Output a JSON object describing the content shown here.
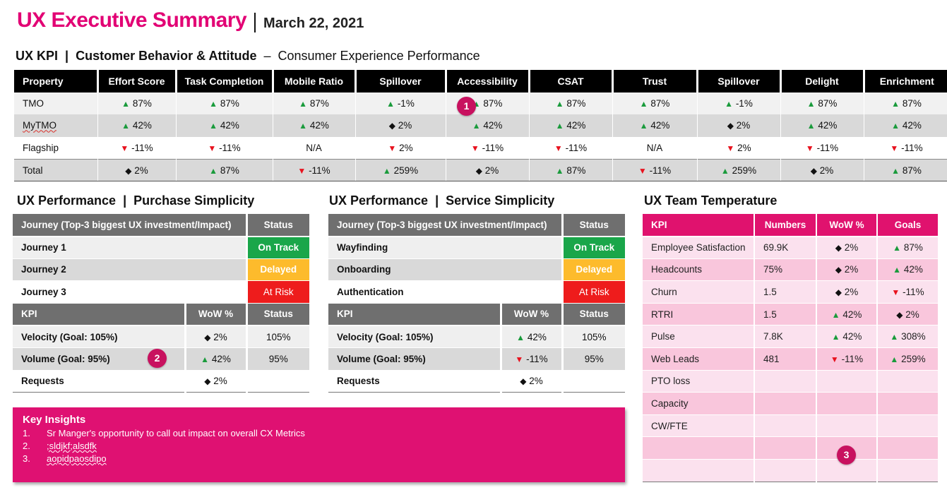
{
  "header": {
    "title": "UX Executive Summary",
    "date": "March 22, 2021"
  },
  "kpi_section": {
    "label": "UX KPI",
    "subtitle": "Customer Behavior & Attitude",
    "description": "Consumer Experience Performance",
    "columns": [
      "Property",
      "Effort Score",
      "Task Completion",
      "Mobile Ratio",
      "Spillover",
      "Accessibility",
      "CSAT",
      "Trust",
      "Spillover",
      "Delight",
      "Enrichment"
    ],
    "rows": [
      {
        "property": "TMO",
        "cells": [
          [
            "up",
            "87%"
          ],
          [
            "up",
            "87%"
          ],
          [
            "up",
            "87%"
          ],
          [
            "up",
            "-1%"
          ],
          [
            "up",
            "87%"
          ],
          [
            "up",
            "87%"
          ],
          [
            "up",
            "87%"
          ],
          [
            "up",
            "-1%"
          ],
          [
            "up",
            "87%"
          ],
          [
            "up",
            "87%"
          ]
        ]
      },
      {
        "property": "MyTMO",
        "cells": [
          [
            "up",
            "42%"
          ],
          [
            "up",
            "42%"
          ],
          [
            "up",
            "42%"
          ],
          [
            "flat",
            "2%"
          ],
          [
            "up",
            "42%"
          ],
          [
            "up",
            "42%"
          ],
          [
            "up",
            "42%"
          ],
          [
            "flat",
            "2%"
          ],
          [
            "up",
            "42%"
          ],
          [
            "up",
            "42%"
          ]
        ]
      },
      {
        "property": "Flagship",
        "cells": [
          [
            "down",
            "-11%"
          ],
          [
            "down",
            "-11%"
          ],
          [
            "none",
            "N/A"
          ],
          [
            "down",
            "2%"
          ],
          [
            "down",
            "-11%"
          ],
          [
            "down",
            "-11%"
          ],
          [
            "none",
            "N/A"
          ],
          [
            "down",
            "2%"
          ],
          [
            "down",
            "-11%"
          ],
          [
            "down",
            "-11%"
          ]
        ]
      },
      {
        "property": "Total",
        "cells": [
          [
            "flat",
            "2%"
          ],
          [
            "up",
            "87%"
          ],
          [
            "down",
            "-11%"
          ],
          [
            "up",
            "259%"
          ],
          [
            "flat",
            "2%"
          ],
          [
            "up",
            "87%"
          ],
          [
            "down",
            "-11%"
          ],
          [
            "up",
            "259%"
          ],
          [
            "flat",
            "2%"
          ],
          [
            "up",
            "87%"
          ]
        ]
      }
    ]
  },
  "purchase": {
    "label": "UX Performance",
    "subtitle": "Purchase Simplicity",
    "journey_header": "Journey (Top-3 biggest UX investment/Impact)",
    "status_header": "Status",
    "journeys": [
      {
        "name": "Journey 1",
        "status": "On Track",
        "status_type": "green"
      },
      {
        "name": "Journey 2",
        "status": "Delayed",
        "status_type": "amber"
      },
      {
        "name": "Journey 3",
        "status": "At Risk",
        "status_type": "red"
      }
    ],
    "kpi_header": "KPI",
    "wow_header": "WoW %",
    "kpi_status_header": "Status",
    "kpis": [
      {
        "name": "Velocity (Goal: 105%)",
        "trend": "flat",
        "wow": "2%",
        "status": "105%"
      },
      {
        "name": "Volume (Goal: 95%)",
        "trend": "up",
        "wow": "42%",
        "status": "95%"
      },
      {
        "name": "Requests",
        "trend": "flat",
        "wow": "2%",
        "status": ""
      }
    ]
  },
  "service": {
    "label": "UX Performance",
    "subtitle": "Service Simplicity",
    "journey_header": "Journey (Top-3 biggest UX investment/Impact)",
    "status_header": "Status",
    "journeys": [
      {
        "name": "Wayfinding",
        "status": "On Track",
        "status_type": "green"
      },
      {
        "name": "Onboarding",
        "status": "Delayed",
        "status_type": "amber"
      },
      {
        "name": "Authentication",
        "status": "At Risk",
        "status_type": "red"
      }
    ],
    "kpi_header": "KPI",
    "wow_header": "WoW %",
    "kpi_status_header": "Status",
    "kpis": [
      {
        "name": "Velocity (Goal: 105%)",
        "trend": "up",
        "wow": "42%",
        "status": "105%"
      },
      {
        "name": "Volume (Goal: 95%)",
        "trend": "down",
        "wow": "-11%",
        "status": "95%"
      },
      {
        "name": "Requests",
        "trend": "flat",
        "wow": "2%",
        "status": ""
      }
    ]
  },
  "team": {
    "title": "UX Team Temperature",
    "columns": [
      "KPI",
      "Numbers",
      "WoW %",
      "Goals"
    ],
    "rows": [
      {
        "kpi": "Employee Satisfaction",
        "numbers": "69.9K",
        "wow_trend": "flat",
        "wow": "2%",
        "goal_trend": "up",
        "goal": "87%"
      },
      {
        "kpi": "Headcounts",
        "numbers": "75%",
        "wow_trend": "flat",
        "wow": "2%",
        "goal_trend": "up",
        "goal": "42%"
      },
      {
        "kpi": "Churn",
        "numbers": "1.5",
        "wow_trend": "flat",
        "wow": "2%",
        "goal_trend": "down",
        "goal": "-11%"
      },
      {
        "kpi": "RTRI",
        "numbers": "1.5",
        "wow_trend": "up",
        "wow": "42%",
        "goal_trend": "flat",
        "goal": "2%"
      },
      {
        "kpi": "Pulse",
        "numbers": "7.8K",
        "wow_trend": "up",
        "wow": "42%",
        "goal_trend": "up",
        "goal": "308%"
      },
      {
        "kpi": "Web Leads",
        "numbers": "481",
        "wow_trend": "down",
        "wow": "-11%",
        "goal_trend": "up",
        "goal": "259%"
      },
      {
        "kpi": "PTO loss",
        "numbers": "",
        "wow_trend": "",
        "wow": "",
        "goal_trend": "",
        "goal": ""
      },
      {
        "kpi": "Capacity",
        "numbers": "",
        "wow_trend": "",
        "wow": "",
        "goal_trend": "",
        "goal": ""
      },
      {
        "kpi": "CW/FTE",
        "numbers": "",
        "wow_trend": "",
        "wow": "",
        "goal_trend": "",
        "goal": ""
      },
      {
        "kpi": "",
        "numbers": "",
        "wow_trend": "",
        "wow": "",
        "goal_trend": "",
        "goal": ""
      },
      {
        "kpi": "",
        "numbers": "",
        "wow_trend": "",
        "wow": "",
        "goal_trend": "",
        "goal": ""
      }
    ]
  },
  "insights": {
    "title": "Key Insights",
    "items": [
      {
        "num": "1.",
        "text": "Sr Manger's opportunity to call out impact on overall CX Metrics"
      },
      {
        "num": "2.",
        "text": ";sldjkf;alsdfk"
      },
      {
        "num": "3.",
        "text": "aopidpaosdipo"
      }
    ]
  },
  "markers": [
    "1",
    "2",
    "3"
  ],
  "icons": {
    "up": "triangle-up-icon",
    "down": "triangle-down-icon",
    "flat": "diamond-icon"
  },
  "colors": {
    "brand": "#e20074",
    "on_track": "#1aa64a",
    "delayed": "#fdbb2c",
    "at_risk": "#ee1c1c"
  }
}
